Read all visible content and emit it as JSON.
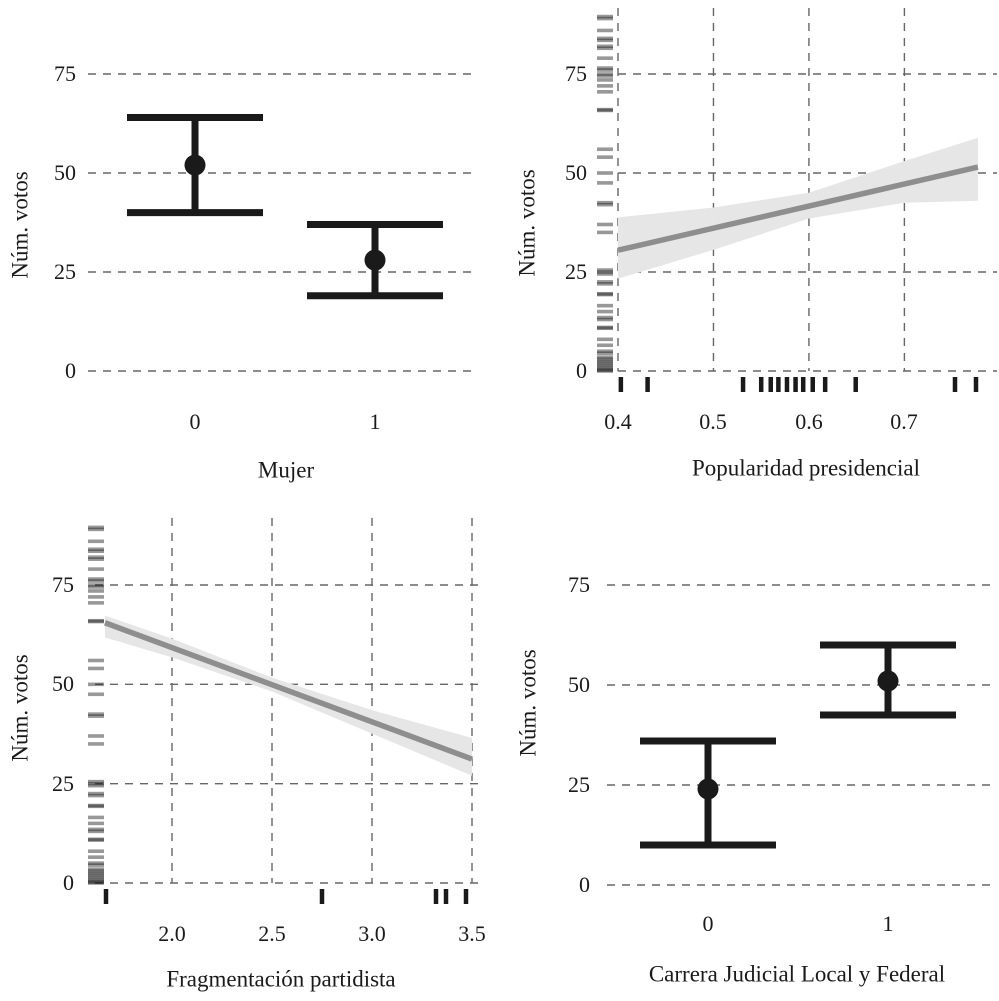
{
  "colors": {
    "ink": "#1a1a1a",
    "fit": "#8e8e8e",
    "band": "#e6e6e6",
    "grid": "#666666",
    "rug": "rgba(26,26,26,0.45)"
  },
  "chart_data": [
    {
      "id": "mujer",
      "type": "errorbar",
      "title": "",
      "xlabel": "Mujer",
      "ylabel": "Núm. votos",
      "categories": [
        "0",
        "1"
      ],
      "xtick_labels": [
        "0",
        "1"
      ],
      "yticks": [
        0,
        25,
        50,
        75
      ],
      "ytick_labels": [
        "0",
        "25",
        "50",
        "75"
      ],
      "ylim": [
        0,
        75
      ],
      "grid": "horizontal-dashed",
      "points": [
        {
          "category": "0",
          "estimate": 52,
          "ci_low": 40,
          "ci_high": 64
        },
        {
          "category": "1",
          "estimate": 28,
          "ci_low": 19,
          "ci_high": 37
        }
      ]
    },
    {
      "id": "popularidad-presidencial",
      "type": "line",
      "title": "",
      "xlabel": "Popularidad presidencial",
      "ylabel": "Núm. votos",
      "xticks": [
        0.4,
        0.5,
        0.6,
        0.7
      ],
      "xtick_labels": [
        "0.4",
        "0.5",
        "0.6",
        "0.7"
      ],
      "xlim": [
        0.4,
        0.797
      ],
      "yticks": [
        0,
        25,
        50,
        75
      ],
      "ytick_labels": [
        "0",
        "25",
        "50",
        "75"
      ],
      "ylim": [
        0,
        75
      ],
      "grid": "both-dashed",
      "line": {
        "x": [
          0.4,
          0.777
        ],
        "y": [
          30.5,
          51.5
        ]
      },
      "band": {
        "x": [
          0.4,
          0.5,
          0.6,
          0.7,
          0.777
        ],
        "upper": [
          38.8,
          41.3,
          45.0,
          53.0,
          58.9
        ],
        "lower": [
          23.3,
          30.6,
          38.5,
          42.5,
          43.0
        ]
      },
      "rug_x": [
        0.403,
        0.431,
        0.531,
        0.55,
        0.56,
        0.568,
        0.577,
        0.586,
        0.594,
        0.604,
        0.617,
        0.649,
        0.753,
        0.775
      ],
      "rug_y": [
        89.5,
        89,
        86,
        84,
        83.5,
        82,
        81.5,
        79,
        76.5,
        76,
        75,
        74.5,
        73.5,
        72,
        70.5,
        66,
        65.8,
        56,
        54,
        50,
        47.5,
        42.5,
        42,
        37,
        35,
        25.5,
        25,
        24.5,
        22.5,
        22,
        19.5,
        19.3,
        16.5,
        15,
        13.5,
        13,
        11,
        10.8,
        8,
        6.5,
        5,
        4.5,
        3.5,
        3,
        2.5,
        2,
        1.5,
        1,
        0.5,
        0.2,
        0
      ]
    },
    {
      "id": "fragmentacion-partidista",
      "type": "line",
      "title": "",
      "xlabel": "Fragmentación partidista",
      "ylabel": "Núm. votos",
      "xticks": [
        2.0,
        2.5,
        3.0,
        3.5
      ],
      "xtick_labels": [
        "2.0",
        "2.5",
        "3.0",
        "3.5"
      ],
      "xlim": [
        1.615,
        3.55
      ],
      "yticks": [
        0,
        25,
        50,
        75
      ],
      "ytick_labels": [
        "0",
        "25",
        "50",
        "75"
      ],
      "ylim": [
        0,
        75
      ],
      "grid": "both-dashed",
      "line": {
        "x": [
          1.665,
          3.5
        ],
        "y": [
          65.5,
          31.2
        ]
      },
      "band": {
        "x": [
          1.665,
          2.0,
          2.5,
          3.0,
          3.5
        ],
        "upper": [
          67.3,
          61.5,
          51.7,
          43.5,
          36.5
        ],
        "lower": [
          61.8,
          56.8,
          48.2,
          37.6,
          27.0
        ]
      },
      "rug_x": [
        1.67,
        2.75,
        3.32,
        3.37,
        3.47
      ],
      "rug_y": [
        89.5,
        89,
        86,
        84,
        83.5,
        82,
        81.5,
        79,
        76.5,
        76,
        75,
        74.5,
        73.5,
        72,
        70.5,
        66,
        65.8,
        56,
        54,
        50,
        47.5,
        42.5,
        42,
        37,
        35,
        25.5,
        25,
        24.5,
        22.5,
        22,
        19.5,
        19.3,
        16.5,
        15,
        13.5,
        13,
        11,
        10.8,
        8,
        6.5,
        5,
        4.5,
        3.5,
        3,
        2.5,
        2,
        1.5,
        1,
        0.5,
        0.2,
        0
      ]
    },
    {
      "id": "carrera-judicial",
      "type": "errorbar",
      "title": "",
      "xlabel": "Carrera Judicial Local y Federal",
      "ylabel": "Núm. votos",
      "categories": [
        "0",
        "1"
      ],
      "xtick_labels": [
        "0",
        "1"
      ],
      "yticks": [
        0,
        25,
        50,
        75
      ],
      "ytick_labels": [
        "0",
        "25",
        "50",
        "75"
      ],
      "ylim": [
        0,
        75
      ],
      "grid": "horizontal-dashed",
      "points": [
        {
          "category": "0",
          "estimate": 24,
          "ci_low": 10,
          "ci_high": 36
        },
        {
          "category": "1",
          "estimate": 51,
          "ci_low": 42.5,
          "ci_high": 60
        }
      ]
    }
  ]
}
